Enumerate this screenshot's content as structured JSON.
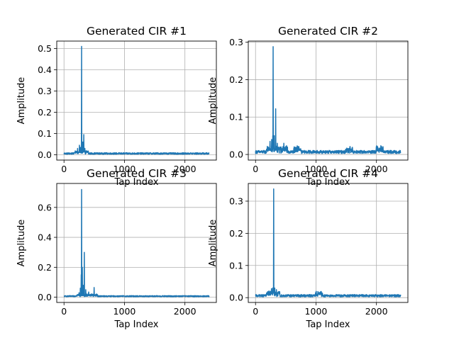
{
  "chart_data": [
    {
      "type": "line",
      "title": "Generated CIR #1",
      "xlabel": "Tap Index",
      "ylabel": "Amplitude",
      "xlim": [
        -120,
        2520
      ],
      "ylim": [
        -0.025,
        0.535
      ],
      "xticks": [
        0,
        1000,
        2000
      ],
      "yticks": [
        0.0,
        0.1,
        0.2,
        0.3,
        0.4,
        0.5
      ],
      "grid": true,
      "color": "#1f77b4",
      "x_range": [
        0,
        2400
      ],
      "noise_level": 0.008,
      "peaks": [
        {
          "x": 225,
          "y": 0.03
        },
        {
          "x": 255,
          "y": 0.045
        },
        {
          "x": 270,
          "y": 0.035
        },
        {
          "x": 292,
          "y": 0.51
        },
        {
          "x": 310,
          "y": 0.06
        },
        {
          "x": 328,
          "y": 0.095
        },
        {
          "x": 345,
          "y": 0.03
        }
      ]
    },
    {
      "type": "line",
      "title": "Generated CIR #2",
      "xlabel": "Tap Index",
      "ylabel": "Amplitude",
      "xlim": [
        -120,
        2520
      ],
      "ylim": [
        -0.015,
        0.303
      ],
      "xticks": [
        0,
        1000,
        2000
      ],
      "yticks": [
        0.0,
        0.1,
        0.2,
        0.3
      ],
      "grid": true,
      "color": "#1f77b4",
      "x_range": [
        0,
        2400
      ],
      "noise_level": 0.009,
      "peaks": [
        {
          "x": 240,
          "y": 0.035
        },
        {
          "x": 268,
          "y": 0.04
        },
        {
          "x": 285,
          "y": 0.05
        },
        {
          "x": 292,
          "y": 0.288
        },
        {
          "x": 310,
          "y": 0.05
        },
        {
          "x": 335,
          "y": 0.122
        },
        {
          "x": 360,
          "y": 0.03
        },
        {
          "x": 410,
          "y": 0.02
        },
        {
          "x": 470,
          "y": 0.03
        },
        {
          "x": 690,
          "y": 0.023
        },
        {
          "x": 1550,
          "y": 0.016
        },
        {
          "x": 2050,
          "y": 0.017
        }
      ]
    },
    {
      "type": "line",
      "title": "Generated CIR #3",
      "xlabel": "Tap Index",
      "ylabel": "Amplitude",
      "xlim": [
        -120,
        2520
      ],
      "ylim": [
        -0.035,
        0.76
      ],
      "xticks": [
        0,
        1000,
        2000
      ],
      "yticks": [
        0.0,
        0.2,
        0.4,
        0.6
      ],
      "grid": true,
      "color": "#1f77b4",
      "x_range": [
        0,
        2400
      ],
      "noise_level": 0.009,
      "peaks": [
        {
          "x": 250,
          "y": 0.03
        },
        {
          "x": 270,
          "y": 0.06
        },
        {
          "x": 285,
          "y": 0.15
        },
        {
          "x": 292,
          "y": 0.72
        },
        {
          "x": 305,
          "y": 0.2
        },
        {
          "x": 320,
          "y": 0.08
        },
        {
          "x": 338,
          "y": 0.3
        },
        {
          "x": 360,
          "y": 0.05
        },
        {
          "x": 410,
          "y": 0.035
        },
        {
          "x": 500,
          "y": 0.065
        }
      ]
    },
    {
      "type": "line",
      "title": "Generated CIR #4",
      "xlabel": "Tap Index",
      "ylabel": "Amplitude",
      "xlim": [
        -120,
        2520
      ],
      "ylim": [
        -0.015,
        0.355
      ],
      "xticks": [
        0,
        1000,
        2000
      ],
      "yticks": [
        0.0,
        0.1,
        0.2,
        0.3
      ],
      "grid": true,
      "color": "#1f77b4",
      "x_range": [
        0,
        2400
      ],
      "noise_level": 0.008,
      "peaks": [
        {
          "x": 240,
          "y": 0.02
        },
        {
          "x": 265,
          "y": 0.028
        },
        {
          "x": 285,
          "y": 0.03
        },
        {
          "x": 300,
          "y": 0.338
        },
        {
          "x": 318,
          "y": 0.03
        },
        {
          "x": 345,
          "y": 0.025
        },
        {
          "x": 1050,
          "y": 0.014
        }
      ]
    }
  ]
}
